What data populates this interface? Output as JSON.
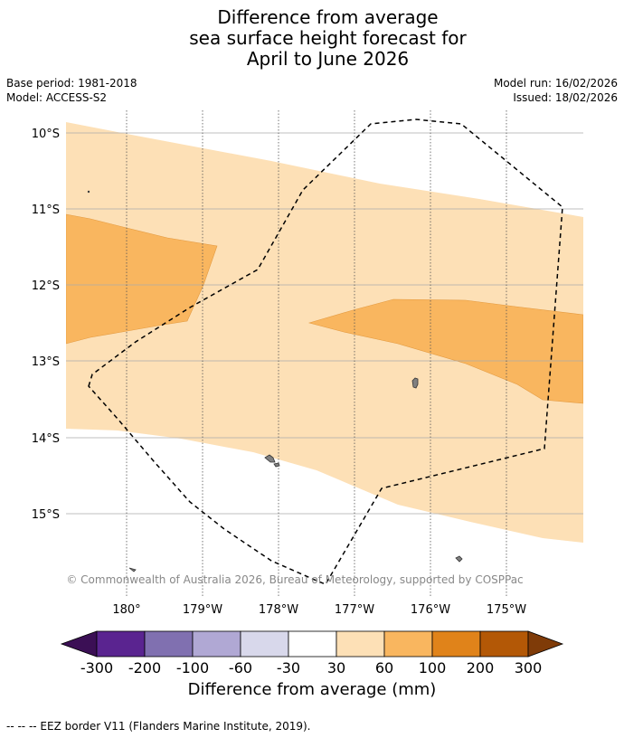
{
  "title": {
    "line1": "Difference from average",
    "line2": "sea surface height forecast for",
    "line3": "April to June 2026"
  },
  "meta_left": {
    "base_period": "Base period: 1981-2018",
    "model": "Model: ACCESS-S2"
  },
  "meta_right": {
    "model_run": "Model run: 16/02/2026",
    "issued": "Issued: 18/02/2026"
  },
  "map": {
    "lat_labels": [
      "10°S",
      "11°S",
      "12°S",
      "13°S",
      "14°S",
      "15°S"
    ],
    "lon_labels": [
      "180°",
      "179°W",
      "178°W",
      "177°W",
      "176°W",
      "175°W"
    ],
    "copyright": "© Commonwealth of Australia 2026, Bureau of Meteorology, supported by COSPPac"
  },
  "colorbar": {
    "labels": [
      "-300",
      "-200",
      "-100",
      "-60",
      "-30",
      "30",
      "60",
      "100",
      "200",
      "300"
    ],
    "colors": [
      "#3b0f55",
      "#5a2490",
      "#8070b0",
      "#b0a8d4",
      "#d8d8eb",
      "#ffffff",
      "#fde0b6",
      "#f9b65f",
      "#e0831a",
      "#b35806",
      "#7f3b08"
    ],
    "title": "Difference from average (mm)"
  },
  "footer": {
    "legend": "--  --  -- EEZ border V11 (Flanders Marine Institute, 2019)."
  }
}
